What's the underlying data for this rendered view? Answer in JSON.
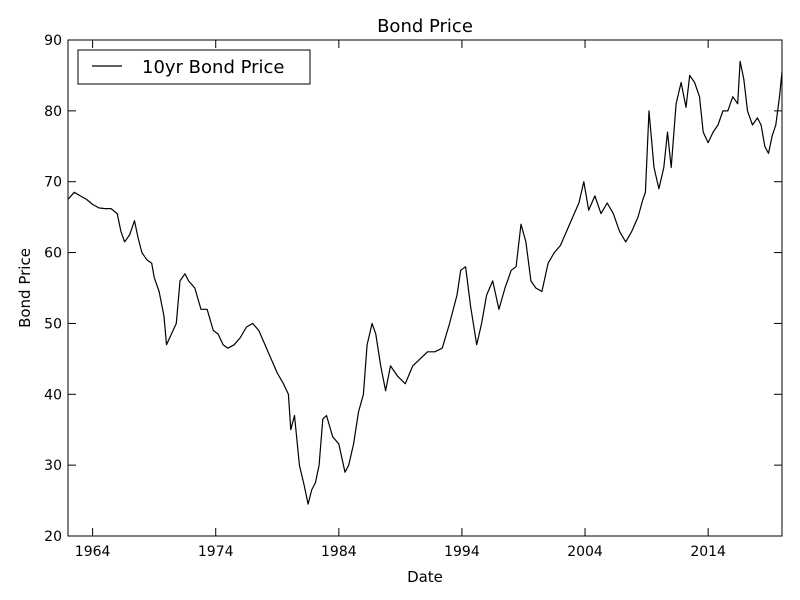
{
  "chart_data": {
    "type": "line",
    "title": "Bond Price",
    "xlabel": "Date",
    "ylabel": "Bond Price",
    "xlim": [
      1962,
      2020
    ],
    "ylim": [
      20,
      90
    ],
    "x_ticks": [
      "1964",
      "1974",
      "1984",
      "1994",
      "2004",
      "2014"
    ],
    "y_ticks": [
      "20",
      "30",
      "40",
      "50",
      "60",
      "70",
      "80",
      "90"
    ],
    "grid": false,
    "legend_position": "top-left",
    "line_color": "#000000",
    "series": [
      {
        "name": "10yr Bond Price",
        "x": [
          1962.0,
          1962.5,
          1963.0,
          1963.5,
          1964.0,
          1964.5,
          1965.0,
          1965.5,
          1966.0,
          1966.3,
          1966.6,
          1967.0,
          1967.4,
          1967.7,
          1968.0,
          1968.4,
          1968.8,
          1969.0,
          1969.4,
          1969.8,
          1970.0,
          1970.4,
          1970.8,
          1971.1,
          1971.5,
          1971.8,
          1972.3,
          1972.8,
          1973.3,
          1973.8,
          1974.2,
          1974.6,
          1975.0,
          1975.5,
          1976.0,
          1976.5,
          1977.0,
          1977.5,
          1978.0,
          1978.5,
          1979.0,
          1979.5,
          1979.9,
          1980.1,
          1980.4,
          1980.8,
          1981.2,
          1981.5,
          1981.8,
          1982.1,
          1982.4,
          1982.7,
          1983.0,
          1983.5,
          1984.0,
          1984.5,
          1984.8,
          1985.2,
          1985.6,
          1986.0,
          1986.3,
          1986.7,
          1987.0,
          1987.4,
          1987.8,
          1988.2,
          1988.8,
          1989.4,
          1990.0,
          1990.6,
          1991.2,
          1991.8,
          1992.4,
          1993.0,
          1993.6,
          1993.9,
          1994.3,
          1994.7,
          1995.2,
          1995.6,
          1996.0,
          1996.5,
          1997.0,
          1997.5,
          1998.0,
          1998.4,
          1998.8,
          1999.2,
          1999.6,
          2000.0,
          2000.5,
          2001.0,
          2001.5,
          2002.0,
          2002.5,
          2003.0,
          2003.5,
          2003.9,
          2004.3,
          2004.8,
          2005.3,
          2005.8,
          2006.3,
          2006.8,
          2007.3,
          2007.8,
          2008.3,
          2008.7,
          2008.9,
          2009.2,
          2009.6,
          2010.0,
          2010.4,
          2010.7,
          2011.0,
          2011.4,
          2011.8,
          2012.2,
          2012.5,
          2012.9,
          2013.3,
          2013.6,
          2014.0,
          2014.4,
          2014.8,
          2015.2,
          2015.6,
          2016.0,
          2016.4,
          2016.6,
          2016.9,
          2017.2,
          2017.6,
          2018.0,
          2018.3,
          2018.6,
          2018.9,
          2019.2,
          2019.5,
          2019.8,
          2020.0
        ],
        "values": [
          67.5,
          68.5,
          68.0,
          67.5,
          66.8,
          66.3,
          66.2,
          66.2,
          65.5,
          63.0,
          61.5,
          62.5,
          64.5,
          62.0,
          60.0,
          59.0,
          58.5,
          56.5,
          54.5,
          51.0,
          47.0,
          48.5,
          50.0,
          56.0,
          57.0,
          56.0,
          55.0,
          52.0,
          52.0,
          49.0,
          48.5,
          47.0,
          46.5,
          47.0,
          48.0,
          49.5,
          50.0,
          49.0,
          47.0,
          45.0,
          43.0,
          41.5,
          40.0,
          35.0,
          37.0,
          30.0,
          27.0,
          24.5,
          26.5,
          27.5,
          30.0,
          36.5,
          37.0,
          34.0,
          33.0,
          29.0,
          30.0,
          33.0,
          37.5,
          40.0,
          47.0,
          50.0,
          48.5,
          44.0,
          40.5,
          44.0,
          42.5,
          41.5,
          44.0,
          45.0,
          46.0,
          46.0,
          46.5,
          50.0,
          54.0,
          57.5,
          58.0,
          52.5,
          47.0,
          50.0,
          54.0,
          56.0,
          52.0,
          55.0,
          57.5,
          58.0,
          64.0,
          61.5,
          56.0,
          55.0,
          54.5,
          58.5,
          60.0,
          61.0,
          63.0,
          65.0,
          67.0,
          70.0,
          66.0,
          68.0,
          65.5,
          67.0,
          65.5,
          63.0,
          61.5,
          63.0,
          65.0,
          67.5,
          68.5,
          80.0,
          72.0,
          69.0,
          72.0,
          77.0,
          72.0,
          81.0,
          84.0,
          80.5,
          85.0,
          84.0,
          82.0,
          77.0,
          75.5,
          77.0,
          78.0,
          80.0,
          80.0,
          82.0,
          81.0,
          87.0,
          84.5,
          80.0,
          78.0,
          79.0,
          78.0,
          75.0,
          74.0,
          76.5,
          78.0,
          82.0,
          85.5
        ]
      }
    ]
  }
}
